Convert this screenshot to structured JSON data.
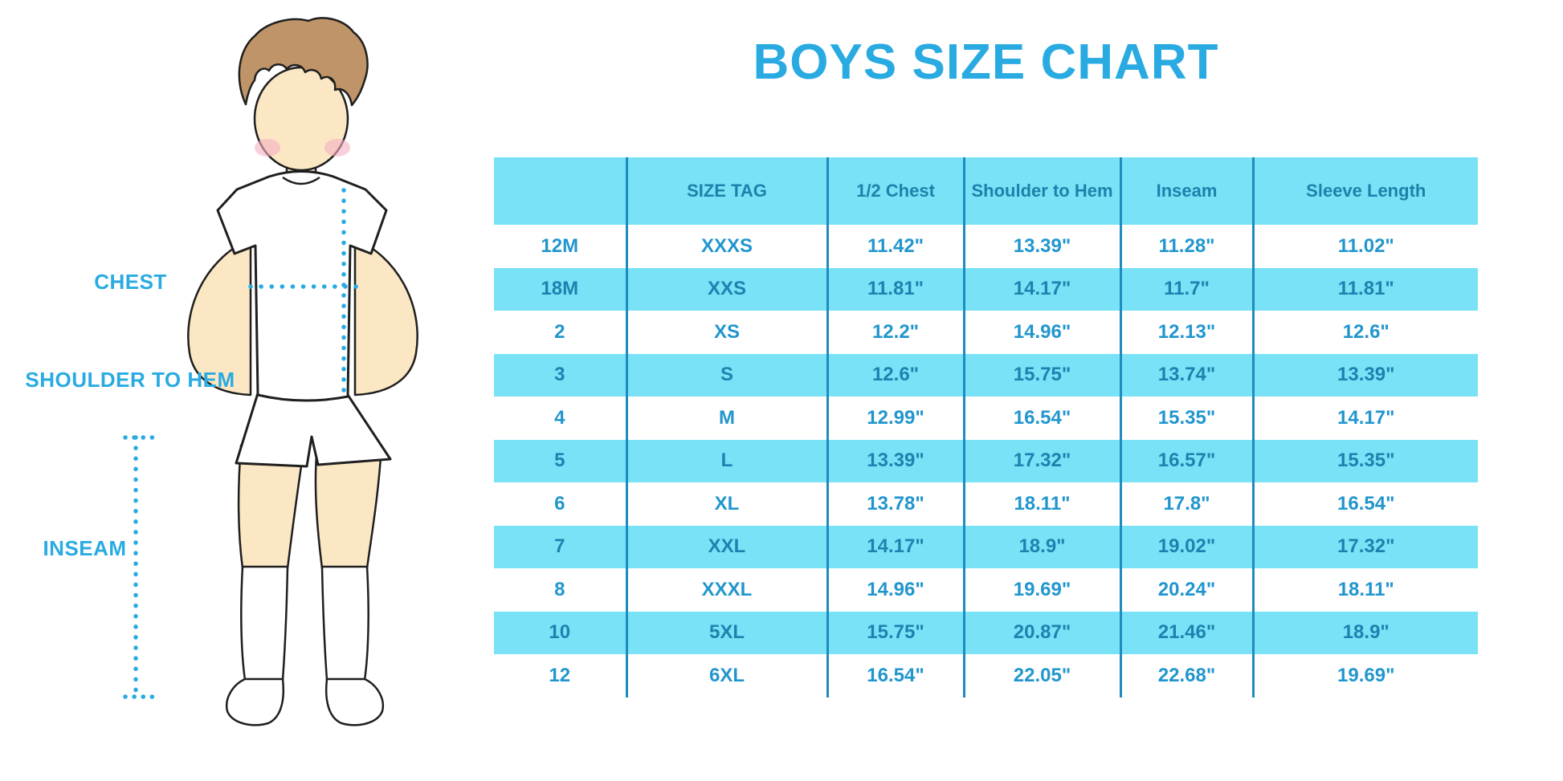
{
  "title": "BOYS SIZE CHART",
  "figure": {
    "labels": {
      "chest": "CHEST",
      "shoulder_to_hem": "SHOULDER TO HEM",
      "inseam": "INSEAM"
    }
  },
  "colors": {
    "accent_blue": "#29ABE2",
    "table_cyan": "#79E2F6",
    "table_line": "#1E8CBE",
    "header_text": "#1F80AB",
    "cell_text_white_row": "#2196CE",
    "cell_text_cyan_row": "#1E82B0",
    "skin": "#FBE7C3",
    "hair": "#BE9468",
    "blush": "#F5AFC3",
    "outline": "#1F1F1F"
  },
  "chart_data": {
    "type": "table",
    "title": "BOYS SIZE CHART",
    "columns": [
      "",
      "SIZE TAG",
      "1/2 Chest",
      "Shoulder to Hem",
      "Inseam",
      "Sleeve Length"
    ],
    "rows": [
      [
        "12M",
        "XXXS",
        "11.42\"",
        "13.39\"",
        "11.28\"",
        "11.02\""
      ],
      [
        "18M",
        "XXS",
        "11.81\"",
        "14.17\"",
        "11.7\"",
        "11.81\""
      ],
      [
        "2",
        "XS",
        "12.2\"",
        "14.96\"",
        "12.13\"",
        "12.6\""
      ],
      [
        "3",
        "S",
        "12.6\"",
        "15.75\"",
        "13.74\"",
        "13.39\""
      ],
      [
        "4",
        "M",
        "12.99\"",
        "16.54\"",
        "15.35\"",
        "14.17\""
      ],
      [
        "5",
        "L",
        "13.39\"",
        "17.32\"",
        "16.57\"",
        "15.35\""
      ],
      [
        "6",
        "XL",
        "13.78\"",
        "18.11\"",
        "17.8\"",
        "16.54\""
      ],
      [
        "7",
        "XXL",
        "14.17\"",
        "18.9\"",
        "19.02\"",
        "17.32\""
      ],
      [
        "8",
        "XXXL",
        "14.96\"",
        "19.69\"",
        "20.24\"",
        "18.11\""
      ],
      [
        "10",
        "5XL",
        "15.75\"",
        "20.87\"",
        "21.46\"",
        "18.9\""
      ],
      [
        "12",
        "6XL",
        "16.54\"",
        "22.05\"",
        "22.68\"",
        "19.69\""
      ]
    ]
  }
}
